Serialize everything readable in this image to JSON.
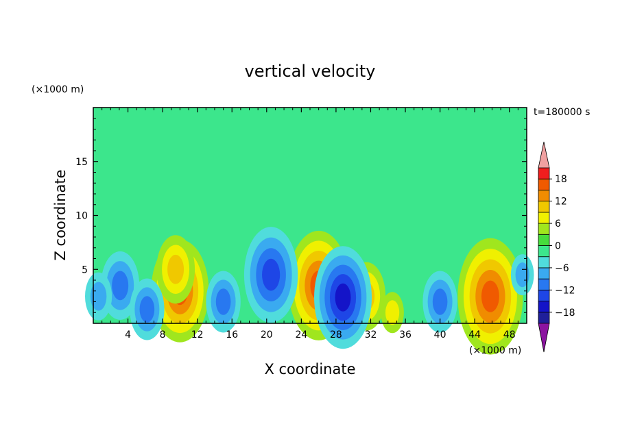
{
  "chart_data": {
    "type": "heatmap",
    "title": "vertical velocity",
    "xlabel": "X coordinate",
    "ylabel": "Z coordinate",
    "x_unit": "(×1000 m)",
    "y_unit": "(×1000 m)",
    "time_label": "t=180000 s",
    "xlim": [
      0,
      50
    ],
    "ylim": [
      0,
      20
    ],
    "x_ticks": [
      4,
      8,
      12,
      16,
      20,
      24,
      28,
      32,
      36,
      40,
      44,
      48
    ],
    "y_ticks": [
      5,
      10,
      15
    ],
    "colorbar": {
      "levels": [
        -21,
        -18,
        -15,
        -12,
        -9,
        -6,
        -3,
        0,
        3,
        6,
        9,
        12,
        15,
        18,
        21
      ],
      "labels": [
        -18,
        -12,
        -6,
        0,
        6,
        12,
        18
      ],
      "colors": [
        "#5a0a8c",
        "#1f1f9a",
        "#1414c8",
        "#1e46e6",
        "#2878f0",
        "#3aaaf0",
        "#50dcdc",
        "#3ce68c",
        "#46dc3c",
        "#a0e61e",
        "#f0f000",
        "#f0c800",
        "#f08c00",
        "#f05a00",
        "#f01e1e",
        "#d20000"
      ],
      "under_color": "#8c14a0",
      "over_color": "#f0a0a0"
    },
    "features": [
      {
        "x": 10,
        "z": 3,
        "w": 1.5
      },
      {
        "x": 9.5,
        "z": 5,
        "w": 1.0
      },
      {
        "x": 26,
        "z": 3.5,
        "w": 1.6
      },
      {
        "x": 45.8,
        "z": 2.5,
        "w": 1.7
      },
      {
        "x": 31.5,
        "z": 2.5,
        "w": 1.0
      },
      {
        "x": 34.5,
        "z": 1,
        "w": 0.6
      },
      {
        "x": 20.5,
        "z": 4.5,
        "w": -1.4
      },
      {
        "x": 28.8,
        "z": 2.4,
        "w": -1.5
      },
      {
        "x": 3.1,
        "z": 3.5,
        "w": -1.0
      },
      {
        "x": 15,
        "z": 2,
        "w": -0.9
      },
      {
        "x": 40,
        "z": 2,
        "w": -0.9
      },
      {
        "x": 6.2,
        "z": 1.3,
        "w": -0.9
      },
      {
        "x": 0.6,
        "z": 2.5,
        "w": -0.7
      },
      {
        "x": 49.5,
        "z": 4.5,
        "w": -0.6
      }
    ]
  }
}
